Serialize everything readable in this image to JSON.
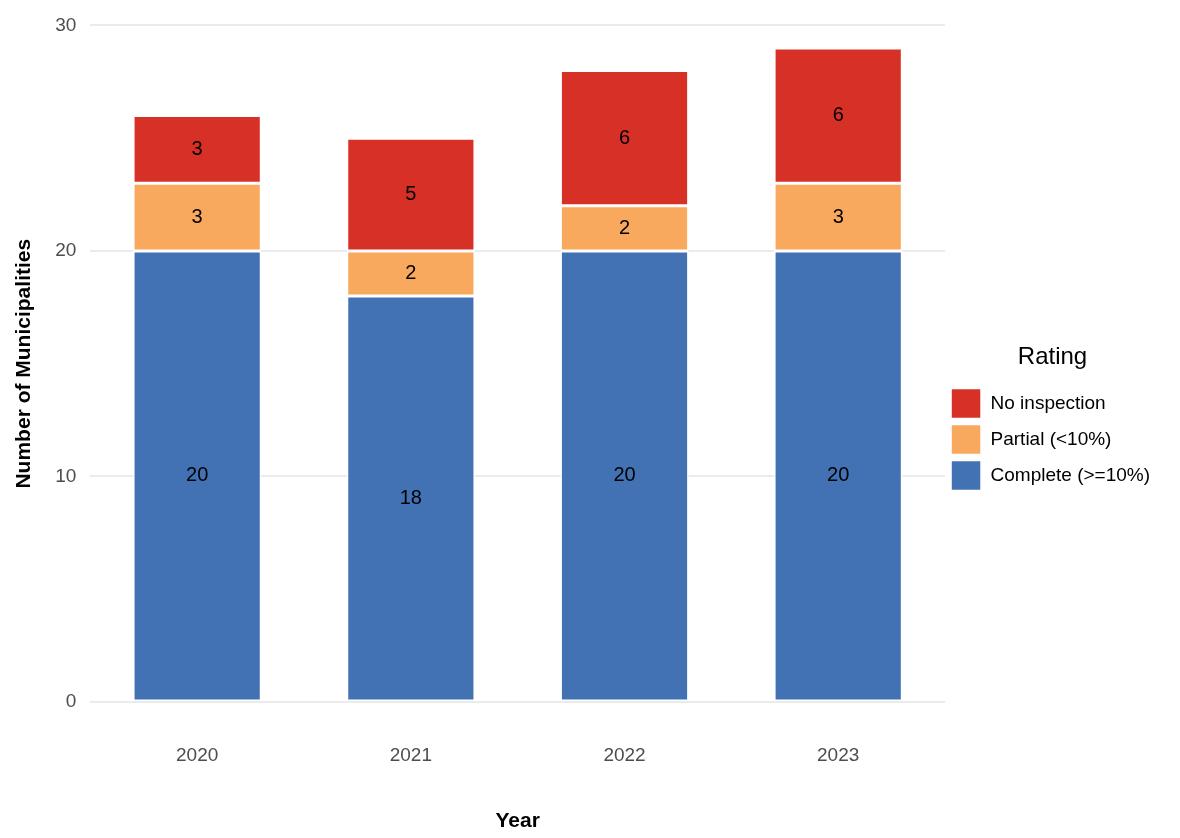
{
  "chart_data": {
    "type": "bar",
    "stacked": true,
    "xlabel": "Year",
    "ylabel": "Number of Municipalities",
    "legend_title": "Rating",
    "categories": [
      "2020",
      "2021",
      "2022",
      "2023"
    ],
    "series": [
      {
        "name": "Complete (>=10%)",
        "color": "#4372b4",
        "values": [
          20,
          18,
          20,
          20
        ]
      },
      {
        "name": "Partial (<10%)",
        "color": "#f9a95e",
        "values": [
          3,
          2,
          2,
          3
        ]
      },
      {
        "name": "No inspection",
        "color": "#d73027",
        "values": [
          3,
          5,
          6,
          6
        ]
      }
    ],
    "ylim": [
      0,
      30
    ],
    "yticks": [
      0,
      10,
      20,
      30
    ],
    "grid": "y",
    "legend": "right",
    "data_labels": true
  }
}
